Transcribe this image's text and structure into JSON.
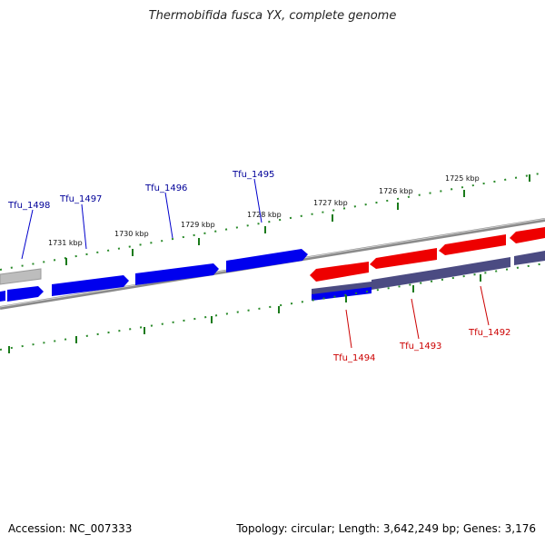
{
  "title": "Thermobifida fusca YX, complete genome",
  "footer": {
    "accession": "Accession: NC_007333",
    "topology": "Topology: circular; Length: 3,642,249 bp; Genes: 3,176"
  },
  "colors": {
    "forward_gene": "#0000ee",
    "reverse_gene": "#ee0000",
    "gray_gene": "#bbbbbb",
    "purple_gene": "#44447a",
    "backbone": "#808080",
    "tick": "#1a7a1a",
    "forward_label": "#000099",
    "reverse_label": "#cc0000"
  },
  "scale_labels": [
    "1725 kbp",
    "1726 kbp",
    "1727 kbp",
    "1728 kbp",
    "1729 kbp",
    "1730 kbp",
    "1731 kbp"
  ],
  "genes": [
    {
      "name": "Tfu_1498",
      "strand": "forward"
    },
    {
      "name": "Tfu_1497",
      "strand": "forward"
    },
    {
      "name": "Tfu_1496",
      "strand": "forward"
    },
    {
      "name": "Tfu_1495",
      "strand": "forward"
    },
    {
      "name": "Tfu_1494",
      "strand": "reverse"
    },
    {
      "name": "Tfu_1493",
      "strand": "reverse"
    },
    {
      "name": "Tfu_1492",
      "strand": "reverse"
    }
  ]
}
